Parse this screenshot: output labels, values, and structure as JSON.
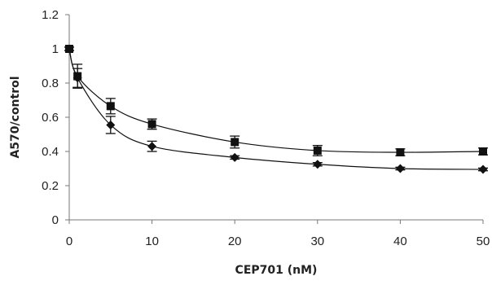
{
  "chart_data": {
    "type": "line",
    "title": "",
    "xlabel": "CEP701 (nM)",
    "ylabel": "A570/control",
    "xlim": [
      0,
      50
    ],
    "ylim": [
      0,
      1.2
    ],
    "xticks": [
      0,
      10,
      20,
      30,
      40,
      50
    ],
    "yticks": [
      0,
      0.2,
      0.4,
      0.6,
      0.8,
      1,
      1.2
    ],
    "ytick_labels": [
      "0",
      "0.2",
      "0.4",
      "0.6",
      "0.8",
      "1",
      "1.2"
    ],
    "grid": false,
    "legend": "none",
    "x": [
      0,
      1,
      5,
      10,
      20,
      30,
      40,
      50
    ],
    "series": [
      {
        "marker": "square",
        "color": "#111111",
        "values": [
          1.0,
          0.84,
          0.665,
          0.56,
          0.455,
          0.405,
          0.395,
          0.4
        ],
        "errors": [
          0.01,
          0.07,
          0.045,
          0.03,
          0.035,
          0.03,
          0.02,
          0.02
        ]
      },
      {
        "marker": "diamond",
        "color": "#111111",
        "values": [
          1.0,
          0.83,
          0.555,
          0.43,
          0.365,
          0.325,
          0.3,
          0.295
        ],
        "errors": [
          0.01,
          0.055,
          0.05,
          0.03,
          0.01,
          0.01,
          0.008,
          0.008
        ]
      }
    ]
  }
}
